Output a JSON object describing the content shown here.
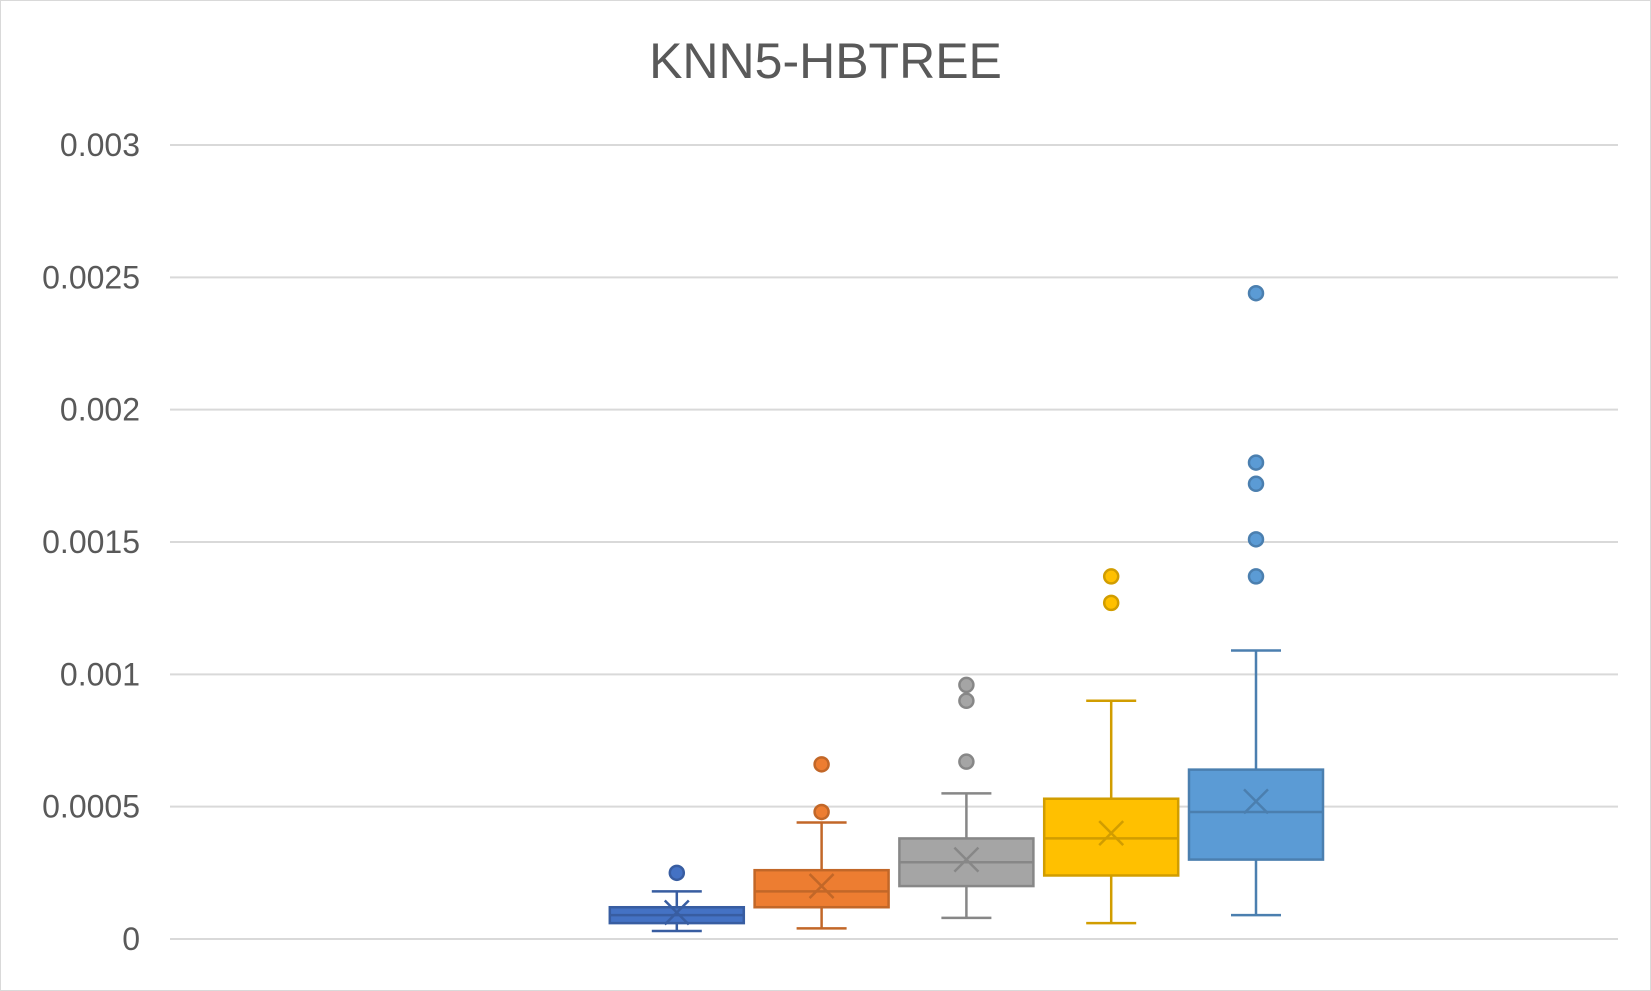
{
  "chart_data": {
    "type": "box",
    "title": "KNN5-HBTREE",
    "xlabel": "",
    "ylabel": "",
    "ylim": [
      0,
      0.003
    ],
    "yticks": [
      {
        "value": 0,
        "label": "0"
      },
      {
        "value": 0.0005,
        "label": "0.0005"
      },
      {
        "value": 0.001,
        "label": "0.001"
      },
      {
        "value": 0.0015,
        "label": "0.0015"
      },
      {
        "value": 0.002,
        "label": "0.002"
      },
      {
        "value": 0.0025,
        "label": "0.0025"
      },
      {
        "value": 0.003,
        "label": "0.003"
      }
    ],
    "grid": true,
    "legend": "none",
    "category_slots": 10,
    "boxes": [
      {
        "slot": 3,
        "color": "#4472C4",
        "min": 3e-05,
        "q1": 6e-05,
        "median": 9e-05,
        "q3": 0.00012,
        "max": 0.00018,
        "mean": 0.0001,
        "outliers": [
          0.00025
        ]
      },
      {
        "slot": 4,
        "color": "#ED7D31",
        "min": 4e-05,
        "q1": 0.00012,
        "median": 0.00018,
        "q3": 0.00026,
        "max": 0.00044,
        "mean": 0.0002,
        "outliers": [
          0.00048,
          0.00066
        ]
      },
      {
        "slot": 5,
        "color": "#A5A5A5",
        "min": 8e-05,
        "q1": 0.0002,
        "median": 0.00029,
        "q3": 0.00038,
        "max": 0.00055,
        "mean": 0.0003,
        "outliers": [
          0.00067,
          0.0009,
          0.00096
        ]
      },
      {
        "slot": 6,
        "color": "#FFC000",
        "min": 6e-05,
        "q1": 0.00024,
        "median": 0.00038,
        "q3": 0.00053,
        "max": 0.0009,
        "mean": 0.0004,
        "outliers": [
          0.00127,
          0.00137
        ]
      },
      {
        "slot": 7,
        "color": "#5B9BD5",
        "min": 9e-05,
        "q1": 0.0003,
        "median": 0.00048,
        "q3": 0.00064,
        "max": 0.00109,
        "mean": 0.00052,
        "outliers": [
          0.00137,
          0.00151,
          0.00172,
          0.0018,
          0.00244
        ]
      }
    ]
  }
}
